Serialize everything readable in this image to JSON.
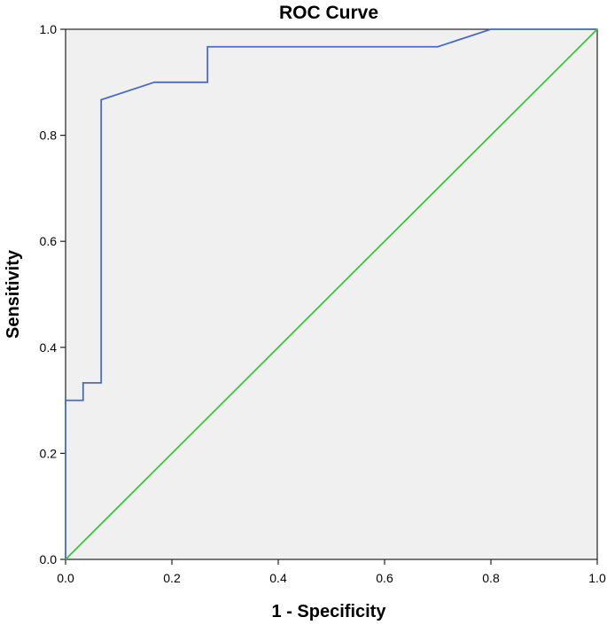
{
  "chart_data": {
    "type": "line",
    "title": "ROC Curve",
    "xlabel": "1 - Specificity",
    "ylabel": "Sensitivity",
    "xlim": [
      0.0,
      1.0
    ],
    "ylim": [
      0.0,
      1.0
    ],
    "x_ticks": [
      "0.0",
      "0.2",
      "0.4",
      "0.6",
      "0.8",
      "1.0"
    ],
    "y_ticks": [
      "0.0",
      "0.2",
      "0.4",
      "0.6",
      "0.8",
      "1.0"
    ],
    "grid": false,
    "plot_background": "#f0f0f0",
    "series": [
      {
        "color": "#4a6bbf",
        "x": [
          0.0,
          0.0,
          0.033,
          0.033,
          0.067,
          0.067,
          0.167,
          0.267,
          0.267,
          0.7,
          0.8,
          1.0
        ],
        "y": [
          0.0,
          0.3,
          0.3,
          0.333,
          0.333,
          0.867,
          0.9,
          0.9,
          0.967,
          0.967,
          1.0,
          1.0
        ]
      },
      {
        "color": "#3cc43c",
        "x": [
          0.0,
          1.0
        ],
        "y": [
          0.0,
          1.0
        ]
      }
    ]
  }
}
